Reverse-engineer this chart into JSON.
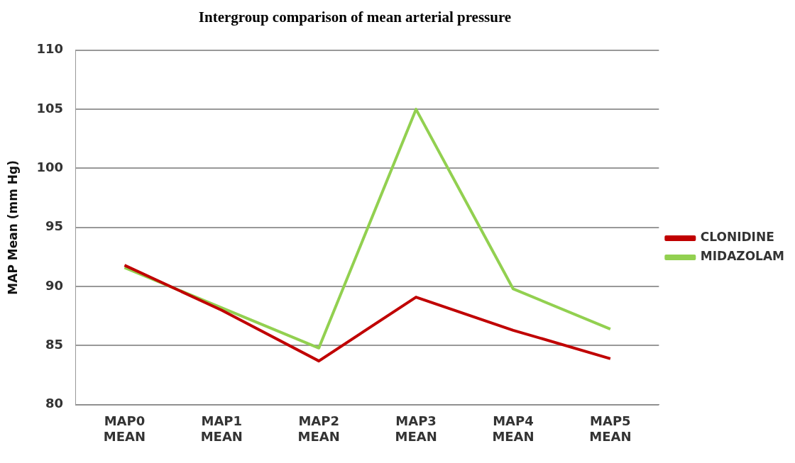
{
  "chart_data": {
    "type": "line",
    "title": "Intergroup comparison of mean arterial pressure",
    "ylabel": "MAP Mean (mm Hg)",
    "categories": [
      "MAP0 MEAN",
      "MAP1 MEAN",
      "MAP2 MEAN",
      "MAP3 MEAN",
      "MAP4 MEAN",
      "MAP5 MEAN"
    ],
    "series": [
      {
        "name": "CLONIDINE",
        "color": "#c00000",
        "values": [
          91.8,
          88.0,
          83.7,
          89.1,
          86.3,
          83.9
        ]
      },
      {
        "name": "MIDAZOLAM",
        "color": "#92d050",
        "values": [
          91.6,
          88.2,
          84.8,
          105.0,
          89.8,
          86.4
        ]
      }
    ],
    "ylim": [
      80,
      110
    ],
    "yticks": [
      80,
      85,
      90,
      95,
      100,
      105,
      110
    ],
    "grid": "y",
    "legend": "right",
    "marker": "none",
    "line_style": "solid"
  }
}
